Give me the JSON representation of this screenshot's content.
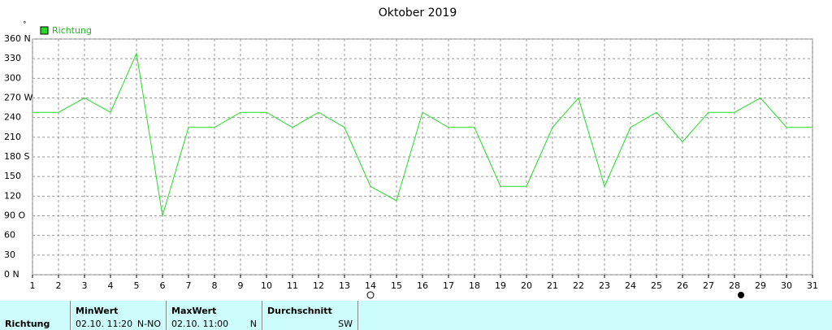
{
  "chart_data": {
    "type": "line",
    "title": "Oktober 2019",
    "unit": "°",
    "x": [
      1,
      2,
      3,
      4,
      5,
      6,
      7,
      8,
      9,
      10,
      11,
      12,
      13,
      14,
      15,
      16,
      17,
      18,
      19,
      20,
      21,
      22,
      23,
      24,
      25,
      26,
      27,
      28,
      29,
      30,
      31
    ],
    "series": [
      {
        "name": "Richtung",
        "color": "#22dd22",
        "values": [
          248,
          248,
          270,
          248,
          338,
          90,
          225,
          225,
          248,
          248,
          225,
          248,
          225,
          135,
          113,
          248,
          225,
          225,
          135,
          135,
          225,
          270,
          135,
          225,
          248,
          203,
          248,
          248,
          270,
          225,
          225
        ]
      }
    ],
    "xlim": [
      1,
      31
    ],
    "xticks": [
      1,
      2,
      3,
      4,
      5,
      6,
      7,
      8,
      9,
      10,
      11,
      12,
      13,
      14,
      15,
      16,
      17,
      18,
      19,
      20,
      21,
      22,
      23,
      24,
      25,
      26,
      27,
      28,
      29,
      30,
      31
    ],
    "ylim": [
      0,
      360
    ],
    "yticks": [
      {
        "value": 0,
        "label": "0  N"
      },
      30,
      60,
      {
        "value": 90,
        "label": "90  O"
      },
      120,
      150,
      {
        "value": 180,
        "label": "180 S"
      },
      210,
      240,
      {
        "value": 270,
        "label": "270 W"
      },
      300,
      330,
      {
        "value": 360,
        "label": "360 N"
      }
    ],
    "grid": true
  },
  "table": {
    "row_label": "Richtung",
    "columns": [
      {
        "header": "MinWert",
        "time": "02.10.  11:20",
        "value": "N-NO"
      },
      {
        "header": "MaxWert",
        "time": "02.10.  11:00",
        "value": "N"
      },
      {
        "header": "Durchschnitt",
        "value": "SW"
      }
    ]
  }
}
